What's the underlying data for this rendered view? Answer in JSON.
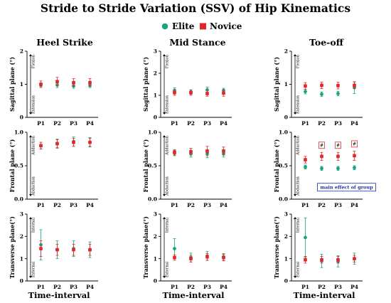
{
  "figure": {
    "title": "Stride to Stride Variation (SSV) of Hip Kinematics",
    "legend": [
      {
        "name": "Elite",
        "color": "#1aa37e",
        "shape": "circle"
      },
      {
        "name": "Novice",
        "color": "#e0262b",
        "shape": "square"
      }
    ],
    "columns": [
      "Heel Strike",
      "Mid Stance",
      "Toe-off"
    ],
    "x_title": "Time-interval",
    "rows": [
      {
        "ylabel": "Sagittal plane (°)",
        "dir_top": "Flexion",
        "dir_bottom": "Extension"
      },
      {
        "ylabel": "Frontal plane (°)",
        "dir_top": "Adduction",
        "dir_bottom": "Abduction"
      },
      {
        "ylabel": "Transverse plane(°)",
        "dir_top": "Internal",
        "dir_bottom": "External"
      }
    ],
    "group_effect_note": "main effect of group",
    "hash_symbol": "#"
  },
  "chart_data": [
    {
      "type": "scatter",
      "row": 0,
      "col": 0,
      "panel": "Heel Strike - Sagittal",
      "categories": [
        "P1",
        "P2",
        "P3",
        "P4"
      ],
      "ylim": [
        0,
        2
      ],
      "yticks": [
        "0",
        "1",
        "2"
      ],
      "series": [
        {
          "name": "Elite",
          "values": [
            0.98,
            0.98,
            0.95,
            0.97
          ],
          "err": [
            0.05,
            0.08,
            0.07,
            0.07
          ]
        },
        {
          "name": "Novice",
          "values": [
            1.0,
            1.08,
            1.05,
            1.05
          ],
          "err": [
            0.1,
            0.13,
            0.12,
            0.12
          ]
        }
      ]
    },
    {
      "type": "scatter",
      "row": 0,
      "col": 1,
      "panel": "Mid Stance - Sagittal",
      "categories": [
        "P1",
        "P2",
        "P3",
        "P4"
      ],
      "ylim": [
        0,
        3
      ],
      "yticks": [
        "0",
        "1",
        "2",
        "3"
      ],
      "series": [
        {
          "name": "Elite",
          "values": [
            1.22,
            1.15,
            1.25,
            1.22
          ],
          "err": [
            0.12,
            0.1,
            0.12,
            0.1
          ]
        },
        {
          "name": "Novice",
          "values": [
            1.12,
            1.12,
            1.08,
            1.1
          ],
          "err": [
            0.12,
            0.12,
            0.12,
            0.14
          ]
        }
      ]
    },
    {
      "type": "scatter",
      "row": 0,
      "col": 2,
      "panel": "Toe-off - Sagittal",
      "categories": [
        "P1",
        "P2",
        "P3",
        "P4"
      ],
      "ylim": [
        0,
        2
      ],
      "yticks": [
        "0",
        "1",
        "2"
      ],
      "series": [
        {
          "name": "Elite",
          "values": [
            0.78,
            0.7,
            0.72,
            0.9
          ],
          "err": [
            0.07,
            0.07,
            0.07,
            0.18
          ]
        },
        {
          "name": "Novice",
          "values": [
            0.95,
            0.97,
            0.96,
            0.97
          ],
          "err": [
            0.1,
            0.1,
            0.1,
            0.1
          ]
        }
      ]
    },
    {
      "type": "scatter",
      "row": 1,
      "col": 0,
      "panel": "Heel Strike - Frontal",
      "categories": [
        "P1",
        "P2",
        "P3",
        "P4"
      ],
      "ylim": [
        0,
        1.0
      ],
      "yticks": [
        "0.0",
        "0.5",
        "1.0"
      ],
      "series": [
        {
          "name": "Elite",
          "values": [
            0.8,
            0.83,
            0.86,
            0.85
          ],
          "err": [
            0.05,
            0.07,
            0.07,
            0.07
          ]
        },
        {
          "name": "Novice",
          "values": [
            0.8,
            0.83,
            0.85,
            0.85
          ],
          "err": [
            0.05,
            0.06,
            0.06,
            0.06
          ]
        }
      ]
    },
    {
      "type": "scatter",
      "row": 1,
      "col": 1,
      "panel": "Mid Stance - Frontal",
      "categories": [
        "P1",
        "P2",
        "P3",
        "P4"
      ],
      "ylim": [
        0,
        1.0
      ],
      "yticks": [
        "0.0",
        "0.5",
        "1.0"
      ],
      "series": [
        {
          "name": "Elite",
          "values": [
            0.69,
            0.68,
            0.68,
            0.68
          ],
          "err": [
            0.04,
            0.05,
            0.06,
            0.05
          ]
        },
        {
          "name": "Novice",
          "values": [
            0.7,
            0.71,
            0.72,
            0.72
          ],
          "err": [
            0.04,
            0.05,
            0.07,
            0.06
          ]
        }
      ]
    },
    {
      "type": "scatter",
      "row": 1,
      "col": 2,
      "panel": "Toe-off - Frontal",
      "categories": [
        "P1",
        "P2",
        "P3",
        "P4"
      ],
      "ylim": [
        0,
        1.0
      ],
      "yticks": [
        "0.0",
        "0.5",
        "1.0"
      ],
      "series": [
        {
          "name": "Elite",
          "values": [
            0.48,
            0.46,
            0.46,
            0.47
          ],
          "err": [
            0.03,
            0.03,
            0.03,
            0.03
          ]
        },
        {
          "name": "Novice",
          "values": [
            0.59,
            0.64,
            0.64,
            0.65
          ],
          "err": [
            0.05,
            0.06,
            0.06,
            0.07
          ]
        }
      ],
      "annotations": {
        "hash_at": [
          "P2",
          "P3",
          "P4"
        ],
        "box_text": "main effect of group"
      }
    },
    {
      "type": "scatter",
      "row": 2,
      "col": 0,
      "panel": "Heel Strike - Transverse",
      "categories": [
        "P1",
        "P2",
        "P3",
        "P4"
      ],
      "ylim": [
        0,
        3
      ],
      "yticks": [
        "0",
        "1",
        "2",
        "3"
      ],
      "series": [
        {
          "name": "Elite",
          "values": [
            1.62,
            1.4,
            1.45,
            1.4
          ],
          "err": [
            0.68,
            0.4,
            0.35,
            0.35
          ]
        },
        {
          "name": "Novice",
          "values": [
            1.45,
            1.4,
            1.4,
            1.4
          ],
          "err": [
            0.35,
            0.25,
            0.25,
            0.25
          ]
        }
      ]
    },
    {
      "type": "scatter",
      "row": 2,
      "col": 1,
      "panel": "Mid Stance - Transverse",
      "categories": [
        "P1",
        "P2",
        "P3",
        "P4"
      ],
      "ylim": [
        0,
        3
      ],
      "yticks": [
        "0",
        "1",
        "2",
        "3"
      ],
      "series": [
        {
          "name": "Elite",
          "values": [
            1.45,
            1.05,
            1.12,
            1.08
          ],
          "err": [
            0.45,
            0.2,
            0.2,
            0.15
          ]
        },
        {
          "name": "Novice",
          "values": [
            1.05,
            1.0,
            1.08,
            1.05
          ],
          "err": [
            0.12,
            0.15,
            0.15,
            0.15
          ]
        }
      ]
    },
    {
      "type": "scatter",
      "row": 2,
      "col": 2,
      "panel": "Toe-off - Transverse",
      "categories": [
        "P1",
        "P2",
        "P3",
        "P4"
      ],
      "ylim": [
        0,
        3
      ],
      "yticks": [
        "0",
        "1",
        "2",
        "3"
      ],
      "series": [
        {
          "name": "Elite",
          "values": [
            1.95,
            0.9,
            0.88,
            1.0
          ],
          "err": [
            0.88,
            0.3,
            0.25,
            0.25
          ]
        },
        {
          "name": "Novice",
          "values": [
            0.95,
            0.95,
            0.95,
            1.0
          ],
          "err": [
            0.15,
            0.15,
            0.15,
            0.15
          ]
        }
      ]
    }
  ]
}
